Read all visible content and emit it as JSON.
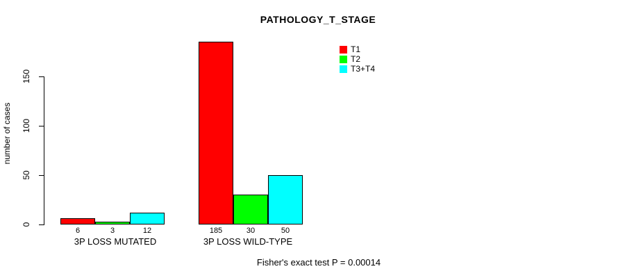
{
  "title": "PATHOLOGY_T_STAGE",
  "caption": "Fisher's exact test P = 0.00014",
  "chart_data": {
    "type": "bar",
    "title": "PATHOLOGY_T_STAGE",
    "xlabel": "",
    "ylabel": "number of cases",
    "ylim": [
      0,
      185
    ],
    "y_ticks": [
      0,
      50,
      100,
      150
    ],
    "grid": false,
    "legend_position": "top-right",
    "categories": [
      "3P LOSS MUTATED",
      "3P LOSS WILD-TYPE"
    ],
    "series": [
      {
        "name": "T1",
        "color": "#FF0000",
        "values": [
          6,
          185
        ]
      },
      {
        "name": "T2",
        "color": "#00FF00",
        "values": [
          3,
          30
        ]
      },
      {
        "name": "T3+T4",
        "color": "#00FFFF",
        "values": [
          12,
          50
        ]
      }
    ],
    "value_labels": [
      [
        6,
        3,
        12
      ],
      [
        185,
        30,
        50
      ]
    ],
    "annotation": "Fisher's exact test P = 0.00014"
  }
}
